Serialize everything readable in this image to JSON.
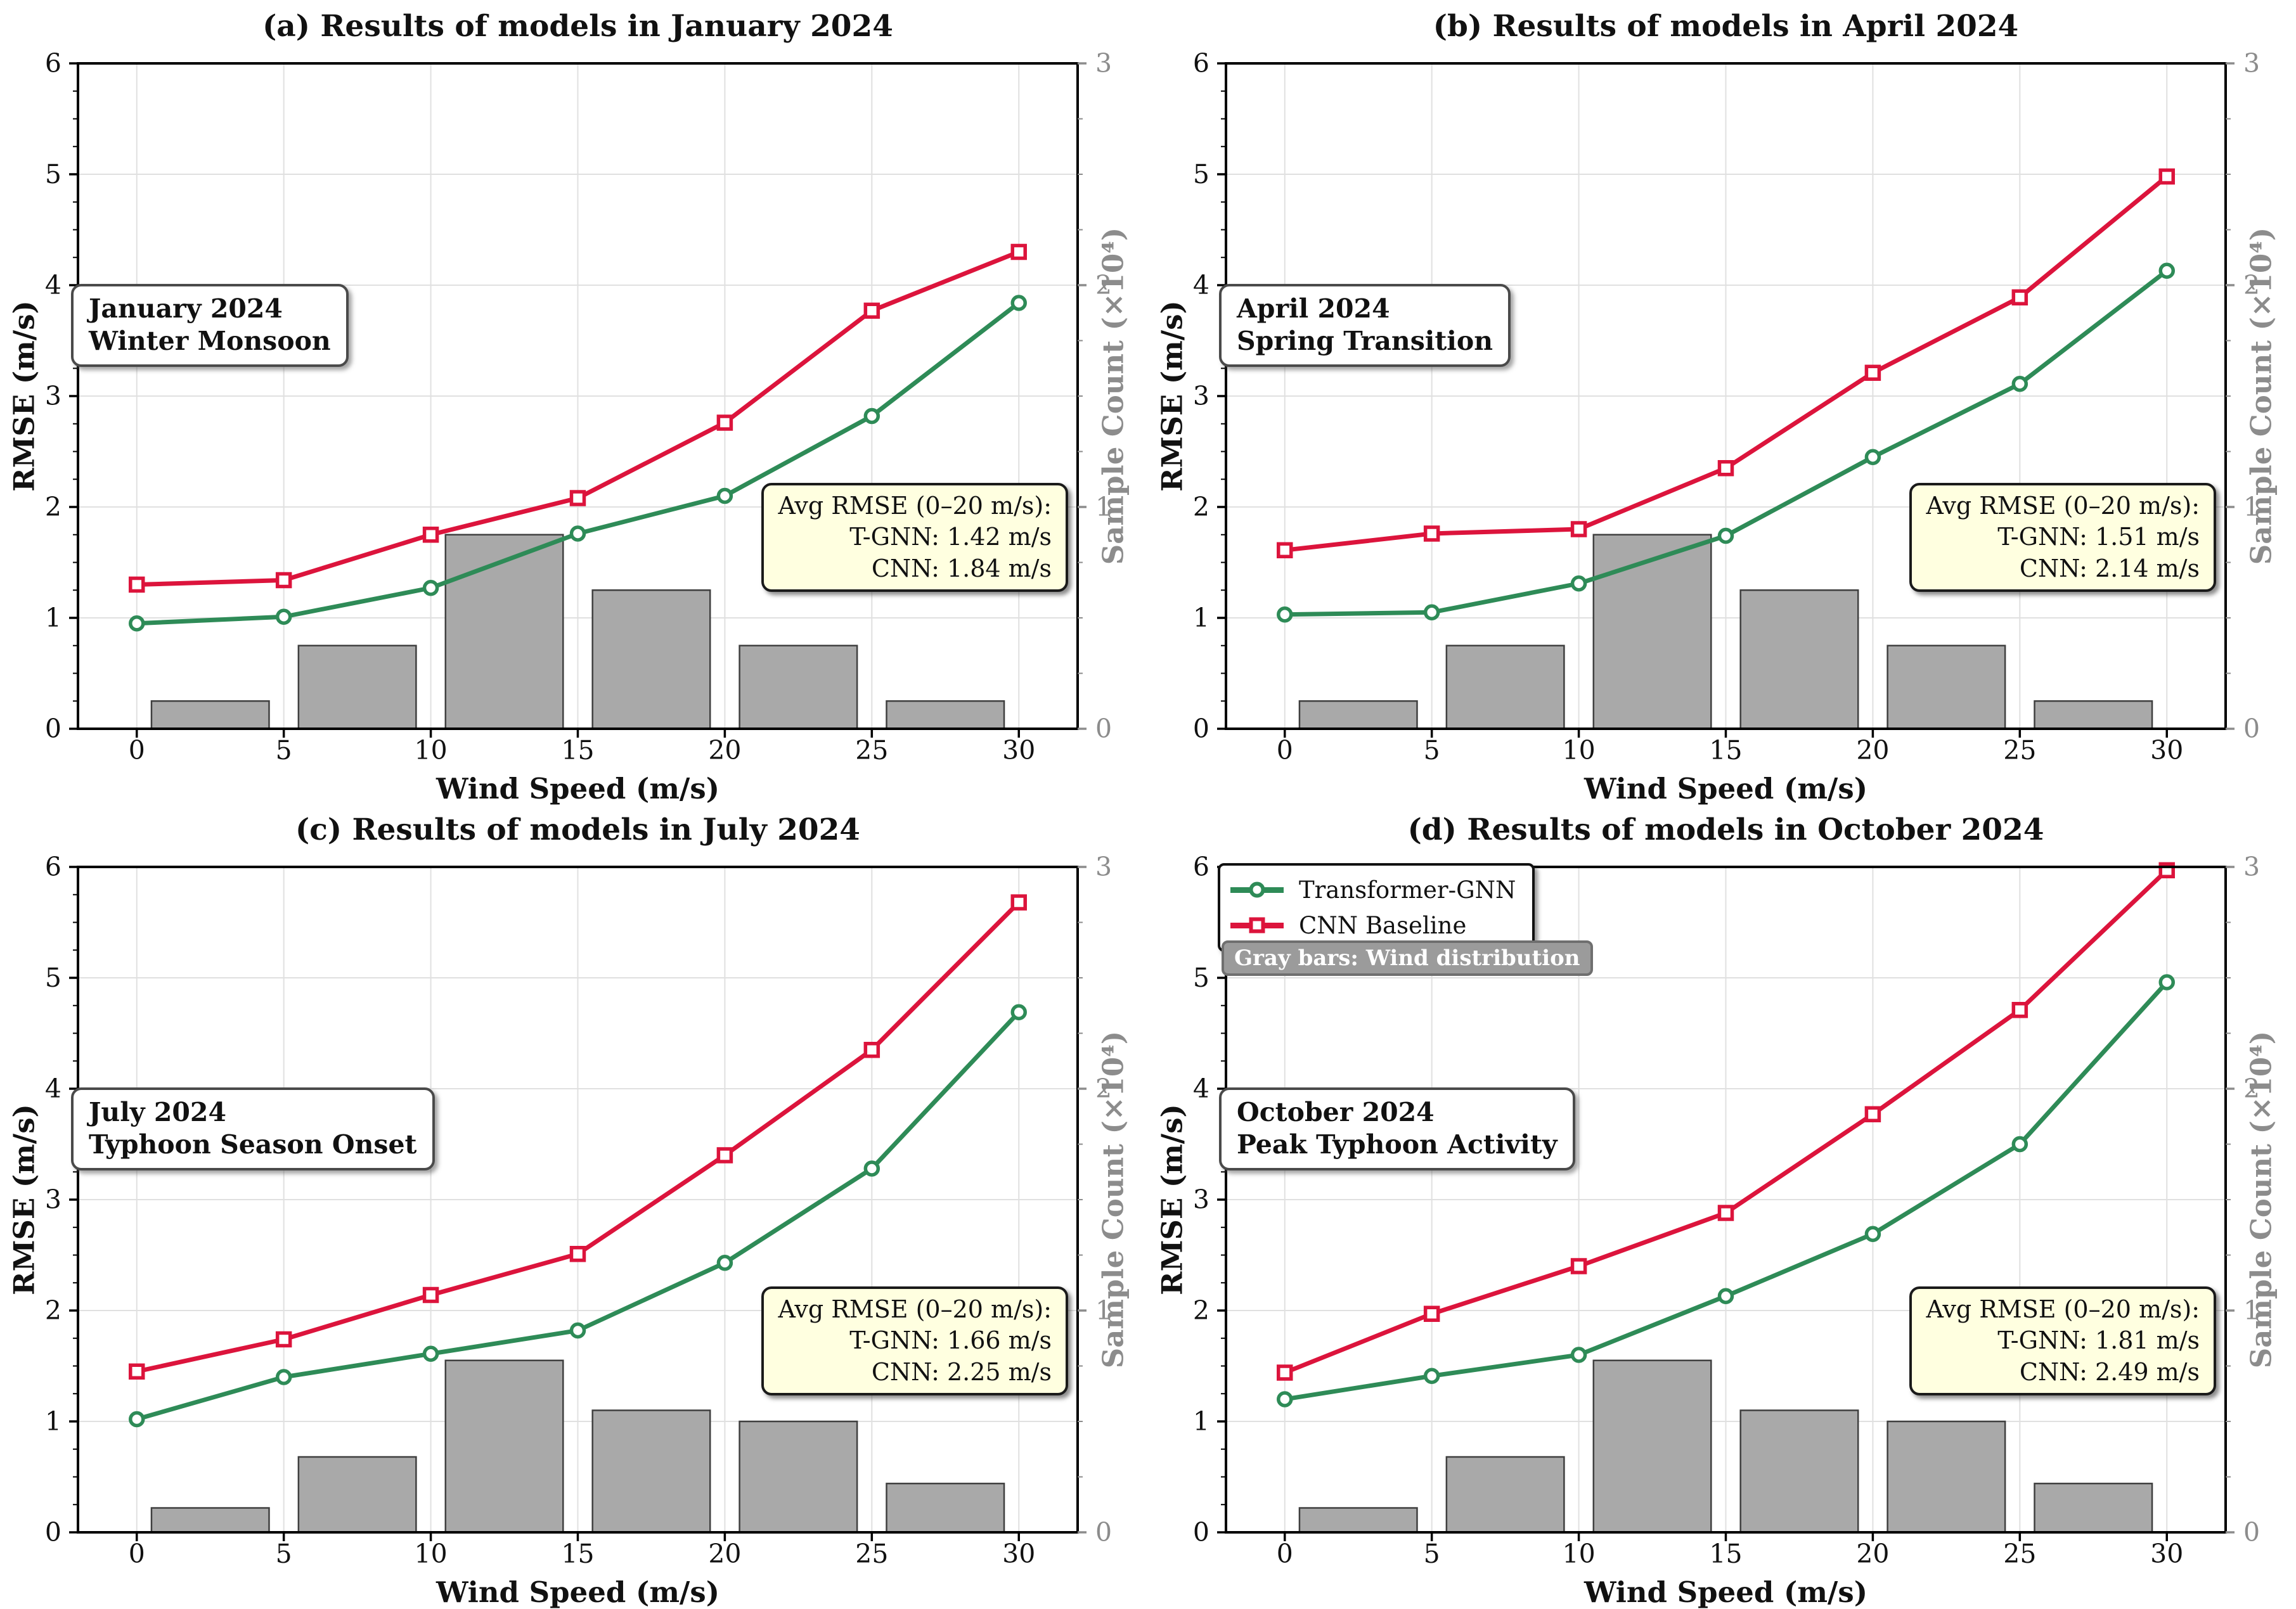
{
  "page": {
    "background": "#ffffff"
  },
  "style": {
    "tgnn_color": "#2E8B57",
    "cnn_color": "#DC143C",
    "bar_fill": "#A9A9A9",
    "bar_edge": "#3F3F3F",
    "grid_color": "#E0E0E0",
    "axis_color": "#000000",
    "right_axis_text": "#8C8C8C",
    "stats_bg": "#FFFFE0"
  },
  "legend": {
    "items": [
      {
        "label": "Transformer-GNN",
        "color": "#2E8B57",
        "marker": "circle"
      },
      {
        "label": "CNN Baseline",
        "color": "#DC143C",
        "marker": "square"
      }
    ],
    "note": "Gray bars: Wind distribution",
    "location": "top-left of chart (d)"
  },
  "chart_data": [
    {
      "id": "a",
      "type": "line+bar",
      "title": "(a) Results of models in January 2024",
      "xlabel": "Wind Speed (m/s)",
      "ylabel": "RMSE (m/s)",
      "ylabel_right": "Sample Count (×10⁴)",
      "xlim": [
        -2,
        32
      ],
      "ylim": [
        0,
        6
      ],
      "ylim_right": [
        0,
        3
      ],
      "x_ticks": [
        0,
        5,
        10,
        15,
        20,
        25,
        30
      ],
      "y_ticks_left": [
        0,
        1,
        2,
        3,
        4,
        5,
        6
      ],
      "y_ticks_right": [
        0,
        1,
        2,
        3
      ],
      "grid": true,
      "x": [
        0,
        5,
        10,
        15,
        20,
        25,
        30
      ],
      "series": [
        {
          "name": "Transformer-GNN",
          "values": [
            0.95,
            1.01,
            1.27,
            1.76,
            2.1,
            2.82,
            3.84
          ]
        },
        {
          "name": "CNN Baseline",
          "values": [
            1.3,
            1.34,
            1.75,
            2.08,
            2.76,
            3.77,
            4.3
          ]
        }
      ],
      "bars": {
        "label": "Wind distribution",
        "centers": [
          2.5,
          7.5,
          12.5,
          17.5,
          22.5,
          27.5
        ],
        "width": 4,
        "counts_x10k": [
          0.125,
          0.375,
          0.875,
          0.625,
          0.375,
          0.125
        ]
      },
      "annotation_lines": [
        "January 2024",
        "Winter Monsoon"
      ],
      "stats_lines": [
        "Avg RMSE (0–20 m/s):",
        "T-GNN: 1.42 m/s",
        "CNN: 1.84 m/s"
      ]
    },
    {
      "id": "b",
      "type": "line+bar",
      "title": "(b) Results of models in April 2024",
      "xlabel": "Wind Speed (m/s)",
      "ylabel": "RMSE (m/s)",
      "ylabel_right": "Sample Count (×10⁴)",
      "xlim": [
        -2,
        32
      ],
      "ylim": [
        0,
        6
      ],
      "ylim_right": [
        0,
        3
      ],
      "x_ticks": [
        0,
        5,
        10,
        15,
        20,
        25,
        30
      ],
      "y_ticks_left": [
        0,
        1,
        2,
        3,
        4,
        5,
        6
      ],
      "y_ticks_right": [
        0,
        1,
        2,
        3
      ],
      "grid": true,
      "x": [
        0,
        5,
        10,
        15,
        20,
        25,
        30
      ],
      "series": [
        {
          "name": "Transformer-GNN",
          "values": [
            1.03,
            1.05,
            1.31,
            1.74,
            2.45,
            3.11,
            4.13
          ]
        },
        {
          "name": "CNN Baseline",
          "values": [
            1.61,
            1.76,
            1.8,
            2.35,
            3.21,
            3.89,
            4.98
          ]
        }
      ],
      "bars": {
        "label": "Wind distribution",
        "centers": [
          2.5,
          7.5,
          12.5,
          17.5,
          22.5,
          27.5
        ],
        "width": 4,
        "counts_x10k": [
          0.125,
          0.375,
          0.875,
          0.625,
          0.375,
          0.125
        ]
      },
      "annotation_lines": [
        "April 2024",
        "Spring Transition"
      ],
      "stats_lines": [
        "Avg RMSE (0–20 m/s):",
        "T-GNN: 1.51 m/s",
        "CNN: 2.14 m/s"
      ]
    },
    {
      "id": "c",
      "type": "line+bar",
      "title": "(c) Results of models in July 2024",
      "xlabel": "Wind Speed (m/s)",
      "ylabel": "RMSE (m/s)",
      "ylabel_right": "Sample Count (×10⁴)",
      "xlim": [
        -2,
        32
      ],
      "ylim": [
        0,
        6
      ],
      "ylim_right": [
        0,
        3
      ],
      "x_ticks": [
        0,
        5,
        10,
        15,
        20,
        25,
        30
      ],
      "y_ticks_left": [
        0,
        1,
        2,
        3,
        4,
        5,
        6
      ],
      "y_ticks_right": [
        0,
        1,
        2,
        3
      ],
      "grid": true,
      "x": [
        0,
        5,
        10,
        15,
        20,
        25,
        30
      ],
      "series": [
        {
          "name": "Transformer-GNN",
          "values": [
            1.02,
            1.4,
            1.61,
            1.82,
            2.43,
            3.28,
            4.69
          ]
        },
        {
          "name": "CNN Baseline",
          "values": [
            1.45,
            1.74,
            2.14,
            2.51,
            3.4,
            4.35,
            5.68
          ]
        }
      ],
      "bars": {
        "label": "Wind distribution",
        "centers": [
          2.5,
          7.5,
          12.5,
          17.5,
          22.5,
          27.5
        ],
        "width": 4,
        "counts_x10k": [
          0.11,
          0.34,
          0.775,
          0.55,
          0.5,
          0.22
        ]
      },
      "annotation_lines": [
        "July 2024",
        "Typhoon Season Onset"
      ],
      "stats_lines": [
        "Avg RMSE (0–20 m/s):",
        "T-GNN: 1.66 m/s",
        "CNN: 2.25 m/s"
      ]
    },
    {
      "id": "d",
      "type": "line+bar",
      "title": "(d) Results of models in October 2024",
      "xlabel": "Wind Speed (m/s)",
      "ylabel": "RMSE (m/s)",
      "ylabel_right": "Sample Count (×10⁴)",
      "xlim": [
        -2,
        32
      ],
      "ylim": [
        0,
        6
      ],
      "ylim_right": [
        0,
        3
      ],
      "x_ticks": [
        0,
        5,
        10,
        15,
        20,
        25,
        30
      ],
      "y_ticks_left": [
        0,
        1,
        2,
        3,
        4,
        5,
        6
      ],
      "y_ticks_right": [
        0,
        1,
        2,
        3
      ],
      "grid": true,
      "x": [
        0,
        5,
        10,
        15,
        20,
        25,
        30
      ],
      "series": [
        {
          "name": "Transformer-GNN",
          "values": [
            1.2,
            1.41,
            1.6,
            2.13,
            2.69,
            3.5,
            4.96
          ]
        },
        {
          "name": "CNN Baseline",
          "values": [
            1.44,
            1.97,
            2.4,
            2.88,
            3.77,
            4.71,
            5.97
          ]
        }
      ],
      "bars": {
        "label": "Wind distribution",
        "centers": [
          2.5,
          7.5,
          12.5,
          17.5,
          22.5,
          27.5
        ],
        "width": 4,
        "counts_x10k": [
          0.11,
          0.34,
          0.775,
          0.55,
          0.5,
          0.22
        ]
      },
      "annotation_lines": [
        "October 2024",
        "Peak Typhoon Activity"
      ],
      "stats_lines": [
        "Avg RMSE (0–20 m/s):",
        "T-GNN: 1.81 m/s",
        "CNN: 2.49 m/s"
      ]
    }
  ]
}
